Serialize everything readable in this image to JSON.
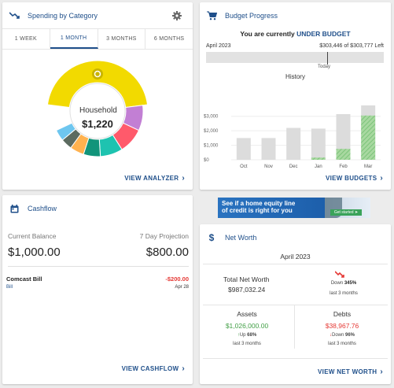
{
  "spending": {
    "title": "Spending by Category",
    "tabs": [
      "1 WEEK",
      "1 MONTH",
      "3 MONTHS",
      "6 MONTHS"
    ],
    "active_tab": 1,
    "center_label": "Household",
    "center_value": "$1,220",
    "footer_link": "VIEW ANALYZER",
    "slices": [
      {
        "color": "#f2da00",
        "share": 0.46
      },
      {
        "color": "#c27fd4",
        "share": 0.09
      },
      {
        "color": "#ff5a6b",
        "share": 0.09
      },
      {
        "color": "#1ec3b0",
        "share": 0.08
      },
      {
        "color": "#11947a",
        "share": 0.06
      },
      {
        "color": "#ffb24f",
        "share": 0.05
      },
      {
        "color": "#5c6b60",
        "share": 0.04
      },
      {
        "color": "#6ec6ef",
        "share": 0.04
      }
    ]
  },
  "budget": {
    "title": "Budget Progress",
    "message_prefix": "You are currently ",
    "message_status": "UNDER BUDGET",
    "month": "April 2023",
    "amount_text": "$303,446 of $303,777 Left",
    "today_label": "Today",
    "history_title": "History",
    "footer_link": "VIEW BUDGETS"
  },
  "chart_data": {
    "type": "bar",
    "title": "History",
    "categories": [
      "Oct",
      "Nov",
      "Dec",
      "Jan",
      "Feb",
      "Mar"
    ],
    "series": [
      {
        "values": [
          1500,
          1500,
          2200,
          2150,
          3150,
          3750
        ]
      },
      {
        "values": [
          0,
          0,
          0,
          150,
          750,
          3050
        ]
      }
    ],
    "yticks": [
      "$0",
      "$1,000",
      "$2,000",
      "$3,000"
    ],
    "ylim": [
      0,
      3800
    ],
    "colors": {
      "budget": "#dcdcdc",
      "spent": "#a8d8a0",
      "spent_stripe": "#7cc47a"
    }
  },
  "cashflow": {
    "title": "Cashflow",
    "current_balance_label": "Current Balance",
    "current_balance_value": "$1,000.00",
    "projection_label": "7 Day Projection",
    "projection_value": "$800.00",
    "item_name": "Comcast Bill",
    "item_amount": "-$200.00",
    "item_category": "Bill",
    "item_date": "Apr 28",
    "footer_link": "VIEW CASHFLOW"
  },
  "ad": {
    "line1": "See if a home equity line",
    "line2": "of credit is right for you",
    "button": "Get started ➤"
  },
  "net_worth": {
    "title": "Net Worth",
    "month": "April 2023",
    "total_label": "Total Net Worth",
    "total_value": "$987,032.24",
    "change_prefix": "Down ",
    "change_value": "345%",
    "change_period": "last 3 months",
    "assets_label": "Assets",
    "assets_value": "$1,026,000.00",
    "assets_change_prefix": "Up ",
    "assets_change_value": "68%",
    "assets_period": "last 3 months",
    "debts_label": "Debts",
    "debts_value": "$38,967.76",
    "debts_change_prefix": "Down ",
    "debts_change_value": "96%",
    "debts_period": "last 3 months",
    "footer_link": "VIEW NET WORTH",
    "colors": {
      "positive": "#43a047",
      "negative": "#e53935"
    }
  }
}
